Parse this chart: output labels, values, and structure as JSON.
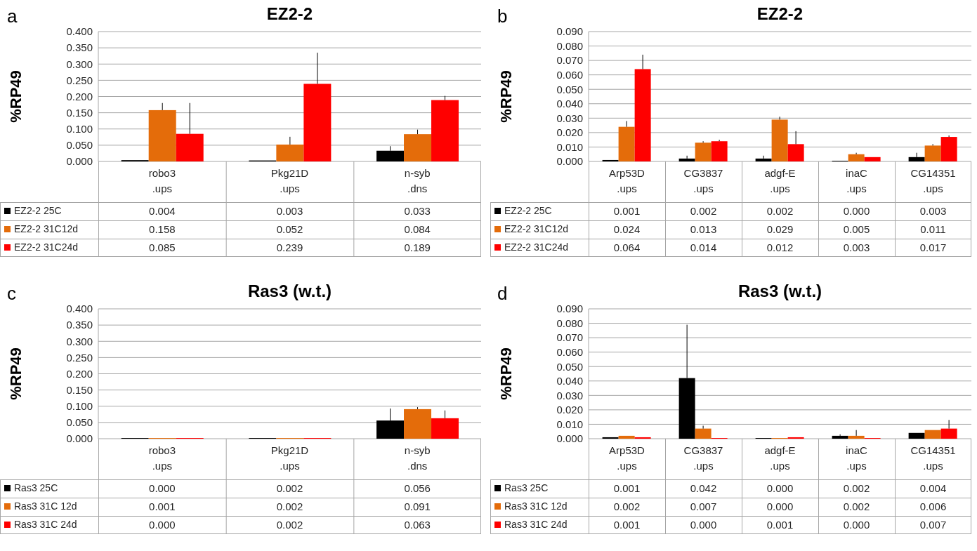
{
  "chart_data": [
    {
      "type": "bar",
      "title": "EZ2-2",
      "ylabel": "%RP49",
      "annotations": [
        "a"
      ],
      "categories": [
        "robo3\n.ups",
        "Pkg21D\n.ups",
        "n-syb\n.dns"
      ],
      "ylim": [
        0,
        0.4
      ],
      "yticks": [
        {
          "value": 0,
          "label": "0.000"
        },
        {
          "value": 0.05,
          "label": "0.050"
        },
        {
          "value": 0.1,
          "label": "0.100"
        },
        {
          "value": 0.15,
          "label": "0.150"
        },
        {
          "value": 0.2,
          "label": "0.200"
        },
        {
          "value": 0.25,
          "label": "0.250"
        },
        {
          "value": 0.3,
          "label": "0.300"
        },
        {
          "value": 0.35,
          "label": "0.350"
        },
        {
          "value": 0.4,
          "label": "0.400"
        }
      ],
      "grid": "y",
      "legend": "bottom",
      "series": [
        {
          "name": "EZ2-2 25C",
          "color": "#000000",
          "values": [
            0.004,
            0.003,
            0.033
          ],
          "value_labels": [
            "0.004",
            "0.003",
            "0.033"
          ],
          "errors": [
            null,
            null,
            [
              0.033,
              0.047
            ]
          ]
        },
        {
          "name": "EZ2-2 31C12d",
          "color": "#e46c0a",
          "values": [
            0.158,
            0.052,
            0.084
          ],
          "value_labels": [
            "0.158",
            "0.052",
            "0.084"
          ],
          "errors": [
            [
              0.158,
              0.18
            ],
            [
              0.052,
              0.076
            ],
            [
              0.084,
              0.098
            ]
          ]
        },
        {
          "name": "EZ2-2 31C24d",
          "color": "#ff0000",
          "values": [
            0.085,
            0.239,
            0.189
          ],
          "value_labels": [
            "0.085",
            "0.239",
            "0.189"
          ],
          "errors": [
            [
              0.085,
              0.18
            ],
            [
              0.239,
              0.335
            ],
            [
              0.189,
              0.202
            ]
          ]
        }
      ]
    },
    {
      "type": "bar",
      "title": "EZ2-2",
      "ylabel": "%RP49",
      "annotations": [
        "b"
      ],
      "categories": [
        "Arp53D\n.ups",
        "CG3837\n.ups",
        "adgf-E\n.ups",
        "inaC\n.ups",
        "CG14351\n.ups"
      ],
      "ylim": [
        0,
        0.09
      ],
      "yticks": [
        {
          "value": 0,
          "label": "0.000"
        },
        {
          "value": 0.01,
          "label": "0.010"
        },
        {
          "value": 0.02,
          "label": "0.020"
        },
        {
          "value": 0.03,
          "label": "0.030"
        },
        {
          "value": 0.04,
          "label": "0.040"
        },
        {
          "value": 0.05,
          "label": "0.050"
        },
        {
          "value": 0.06,
          "label": "0.060"
        },
        {
          "value": 0.07,
          "label": "0.070"
        },
        {
          "value": 0.08,
          "label": "0.080"
        },
        {
          "value": 0.09,
          "label": "0.090"
        }
      ],
      "grid": "y",
      "legend": "bottom",
      "series": [
        {
          "name": "EZ2-2 25C",
          "color": "#000000",
          "values": [
            0.001,
            0.002,
            0.002,
            0.0,
            0.003
          ],
          "value_labels": [
            "0.001",
            "0.002",
            "0.002",
            "0.000",
            "0.003"
          ],
          "errors": [
            null,
            [
              0.002,
              0.004
            ],
            [
              0.002,
              0.004
            ],
            null,
            [
              0.003,
              0.006
            ]
          ]
        },
        {
          "name": "EZ2-2 31C12d",
          "color": "#e46c0a",
          "values": [
            0.024,
            0.013,
            0.029,
            0.005,
            0.011
          ],
          "value_labels": [
            "0.024",
            "0.013",
            "0.029",
            "0.005",
            "0.011"
          ],
          "errors": [
            [
              0.024,
              0.028
            ],
            [
              0.013,
              0.014
            ],
            [
              0.029,
              0.031
            ],
            [
              0.005,
              0.006
            ],
            [
              0.011,
              0.012
            ]
          ]
        },
        {
          "name": "EZ2-2 31C24d",
          "color": "#ff0000",
          "values": [
            0.064,
            0.014,
            0.012,
            0.003,
            0.017
          ],
          "value_labels": [
            "0.064",
            "0.014",
            "0.012",
            "0.003",
            "0.017"
          ],
          "errors": [
            [
              0.064,
              0.074
            ],
            [
              0.014,
              0.015
            ],
            [
              0.012,
              0.021
            ],
            null,
            [
              0.017,
              0.018
            ]
          ]
        }
      ]
    },
    {
      "type": "bar",
      "title": "Ras3 (w.t.)",
      "ylabel": "%RP49",
      "annotations": [
        "c"
      ],
      "categories": [
        "robo3\n.ups",
        "Pkg21D\n.ups",
        "n-syb\n.dns"
      ],
      "ylim": [
        0,
        0.4
      ],
      "yticks": [
        {
          "value": 0,
          "label": "0.000"
        },
        {
          "value": 0.05,
          "label": "0.050"
        },
        {
          "value": 0.1,
          "label": "0.100"
        },
        {
          "value": 0.15,
          "label": "0.150"
        },
        {
          "value": 0.2,
          "label": "0.200"
        },
        {
          "value": 0.25,
          "label": "0.250"
        },
        {
          "value": 0.3,
          "label": "0.300"
        },
        {
          "value": 0.35,
          "label": "0.350"
        },
        {
          "value": 0.4,
          "label": "0.400"
        }
      ],
      "grid": "y",
      "legend": "bottom",
      "series": [
        {
          "name": "Ras3 25C",
          "color": "#000000",
          "values": [
            0.0,
            0.002,
            0.056
          ],
          "value_labels": [
            "0.000",
            "0.002",
            "0.056"
          ],
          "errors": [
            null,
            null,
            [
              0.056,
              0.093
            ]
          ]
        },
        {
          "name": "Ras3 31C 12d",
          "color": "#e46c0a",
          "values": [
            0.001,
            0.002,
            0.091
          ],
          "value_labels": [
            "0.001",
            "0.002",
            "0.091"
          ],
          "errors": [
            null,
            null,
            [
              0.091,
              0.097
            ]
          ]
        },
        {
          "name": "Ras3 31C 24d",
          "color": "#ff0000",
          "values": [
            0.0,
            0.002,
            0.063
          ],
          "value_labels": [
            "0.000",
            "0.002",
            "0.063"
          ],
          "errors": [
            null,
            null,
            [
              0.063,
              0.087
            ]
          ]
        }
      ]
    },
    {
      "type": "bar",
      "title": "Ras3 (w.t.)",
      "ylabel": "%RP49",
      "annotations": [
        "d"
      ],
      "categories": [
        "Arp53D\n.ups",
        "CG3837\n.ups",
        "adgf-E\n.ups",
        "inaC\n.ups",
        "CG14351\n.ups"
      ],
      "ylim": [
        0,
        0.09
      ],
      "yticks": [
        {
          "value": 0,
          "label": "0.000"
        },
        {
          "value": 0.01,
          "label": "0.010"
        },
        {
          "value": 0.02,
          "label": "0.020"
        },
        {
          "value": 0.03,
          "label": "0.030"
        },
        {
          "value": 0.04,
          "label": "0.040"
        },
        {
          "value": 0.05,
          "label": "0.050"
        },
        {
          "value": 0.06,
          "label": "0.060"
        },
        {
          "value": 0.07,
          "label": "0.070"
        },
        {
          "value": 0.08,
          "label": "0.080"
        },
        {
          "value": 0.09,
          "label": "0.090"
        }
      ],
      "grid": "y",
      "legend": "bottom",
      "series": [
        {
          "name": "Ras3 25C",
          "color": "#000000",
          "values": [
            0.001,
            0.042,
            0.0,
            0.002,
            0.004
          ],
          "value_labels": [
            "0.001",
            "0.042",
            "0.000",
            "0.002",
            "0.004"
          ],
          "errors": [
            null,
            [
              0.042,
              0.079
            ],
            null,
            [
              0.002,
              0.003
            ],
            null
          ]
        },
        {
          "name": "Ras3 31C 12d",
          "color": "#e46c0a",
          "values": [
            0.002,
            0.007,
            0.0,
            0.002,
            0.006
          ],
          "value_labels": [
            "0.002",
            "0.007",
            "0.000",
            "0.002",
            "0.006"
          ],
          "errors": [
            null,
            [
              0.007,
              0.009
            ],
            null,
            [
              0.002,
              0.006
            ],
            null
          ]
        },
        {
          "name": "Ras3 31C 24d",
          "color": "#ff0000",
          "values": [
            0.001,
            0.0,
            0.001,
            0.0,
            0.007
          ],
          "value_labels": [
            "0.001",
            "0.000",
            "0.001",
            "0.000",
            "0.007"
          ],
          "errors": [
            null,
            null,
            null,
            null,
            [
              0.007,
              0.013
            ]
          ]
        }
      ]
    }
  ]
}
